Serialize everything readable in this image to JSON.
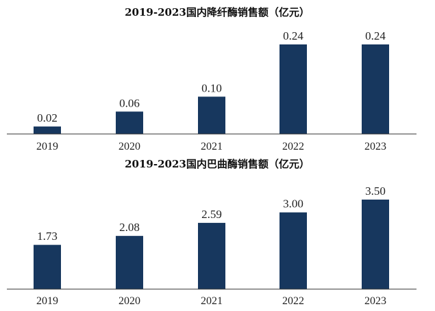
{
  "colors": {
    "bar": "#17375e",
    "axis": "#333333",
    "text": "#222222"
  },
  "chart_data": [
    {
      "type": "bar",
      "title": "2019-2023国内降纤酶销售额（亿元）",
      "categories": [
        "2019",
        "2020",
        "2021",
        "2022",
        "2023"
      ],
      "values": [
        0.02,
        0.06,
        0.1,
        0.24,
        0.24
      ],
      "value_labels": [
        "0.02",
        "0.06",
        "0.10",
        "0.24",
        "0.24"
      ],
      "ylim": [
        0,
        0.24
      ],
      "grid": false,
      "xlabel": "",
      "ylabel": ""
    },
    {
      "type": "bar",
      "title": "2019-2023国内巴曲酶销售额（亿元）",
      "categories": [
        "2019",
        "2020",
        "2021",
        "2022",
        "2023"
      ],
      "values": [
        1.73,
        2.08,
        2.59,
        3.0,
        3.5
      ],
      "value_labels": [
        "1.73",
        "2.08",
        "2.59",
        "3.00",
        "3.50"
      ],
      "ylim": [
        0,
        3.5
      ],
      "grid": false,
      "xlabel": "",
      "ylabel": ""
    }
  ]
}
